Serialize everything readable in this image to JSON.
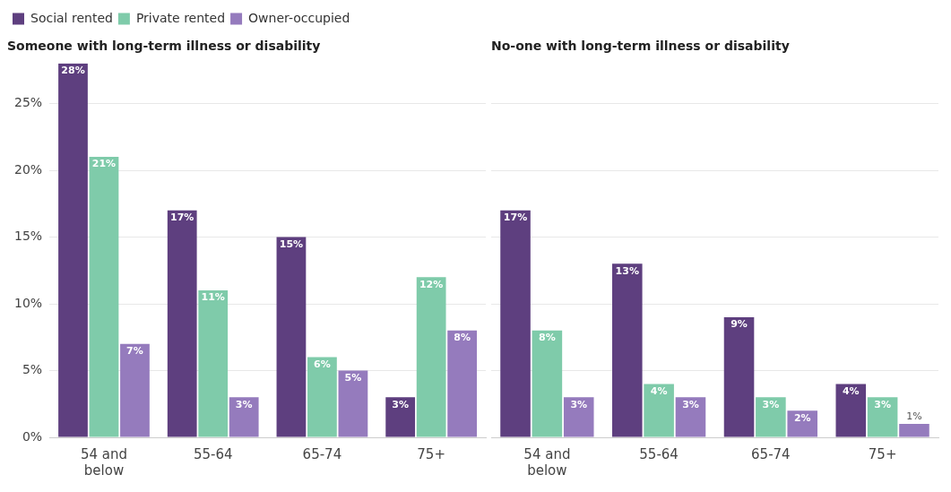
{
  "chart_data": [
    {
      "type": "bar",
      "title": "Someone with long-term illness or disability",
      "categories": [
        "54 and below",
        "55-64",
        "65-74",
        "75+"
      ],
      "legend": "top left",
      "grid": "y",
      "ylim": [
        0,
        28
      ],
      "yticks": [
        {
          "value": 0,
          "label": "0%"
        },
        {
          "value": 5,
          "label": "5%"
        },
        {
          "value": 10,
          "label": "10%"
        },
        {
          "value": 15,
          "label": "15%"
        },
        {
          "value": 20,
          "label": "20%"
        },
        {
          "value": 25,
          "label": "25%"
        }
      ],
      "series": [
        {
          "name": "Social rented",
          "color": "#5e3f7f",
          "values": [
            28,
            17,
            15,
            3
          ],
          "value_labels": [
            "28%",
            "17%",
            "15%",
            "3%"
          ]
        },
        {
          "name": "Private rented",
          "color": "#7fcbaa",
          "values": [
            21,
            11,
            6,
            12
          ],
          "value_labels": [
            "21%",
            "11%",
            "6%",
            "12%"
          ]
        },
        {
          "name": "Owner-occupied",
          "color": "#957bbd",
          "values": [
            7,
            3,
            5,
            8
          ],
          "value_labels": [
            "7%",
            "3%",
            "5%",
            "8%"
          ]
        }
      ]
    },
    {
      "type": "bar",
      "title": "No-one with long-term illness or disability",
      "categories": [
        "54 and below",
        "55-64",
        "65-74",
        "75+"
      ],
      "grid": "y",
      "tick_labels": "x",
      "yticks": [
        0,
        5,
        10,
        15,
        20,
        25
      ],
      "series": [
        {
          "color": "#5e3f7f",
          "values": [
            17,
            13,
            9,
            4
          ],
          "value_labels": [
            "17%",
            "13%",
            "9%",
            "4%"
          ]
        },
        {
          "color": "#7fcbaa",
          "values": [
            8,
            4,
            3,
            3
          ],
          "value_labels": [
            "8%",
            "4%",
            "3%",
            "3%"
          ]
        },
        {
          "color": "#957bbd",
          "values": [
            3,
            3,
            2,
            1
          ],
          "value_labels": [
            "3%",
            "3%",
            "2%",
            "1%"
          ]
        }
      ]
    }
  ]
}
